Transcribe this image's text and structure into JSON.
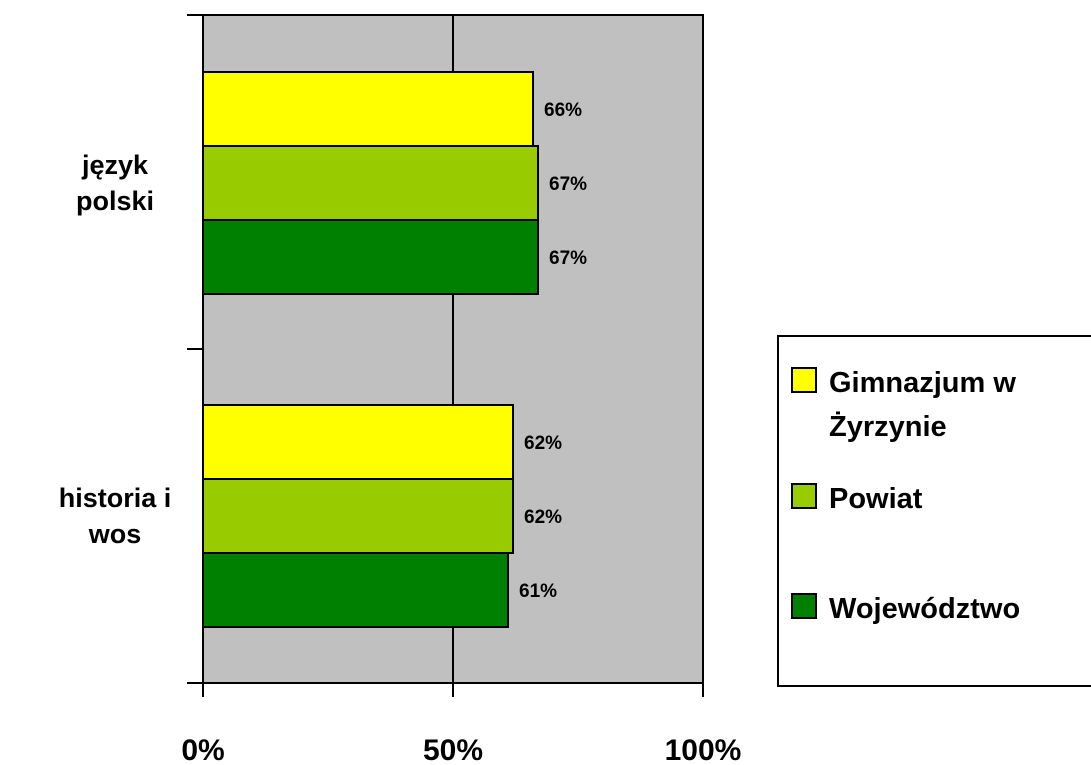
{
  "chart_data": {
    "type": "bar",
    "orientation": "horizontal",
    "categories": [
      "język polski",
      "historia i wos"
    ],
    "category_lines": [
      [
        "język",
        "polski"
      ],
      [
        "historia i",
        "wos"
      ]
    ],
    "series": [
      {
        "name": "Gimnazjum w Żyrzynie",
        "name_lines": [
          "Gimnazjum w",
          "Żyrzynie"
        ],
        "color": "#ffff00",
        "values": [
          66,
          62
        ],
        "labels": [
          "66%",
          "62%"
        ]
      },
      {
        "name": "Powiat",
        "name_lines": [
          "Powiat"
        ],
        "color": "#99cc00",
        "values": [
          67,
          62
        ],
        "labels": [
          "67%",
          "62%"
        ]
      },
      {
        "name": "Województwo",
        "name_lines": [
          "Województwo"
        ],
        "color": "#008000",
        "values": [
          67,
          61
        ],
        "labels": [
          "67%",
          "61%"
        ]
      }
    ],
    "xlim": [
      0,
      100
    ],
    "xticks": [
      0,
      50,
      100
    ],
    "xtick_labels": [
      "0%",
      "50%",
      "100%"
    ],
    "grid": true,
    "plot_background": "#c0c0c0",
    "legend_position": "right"
  }
}
